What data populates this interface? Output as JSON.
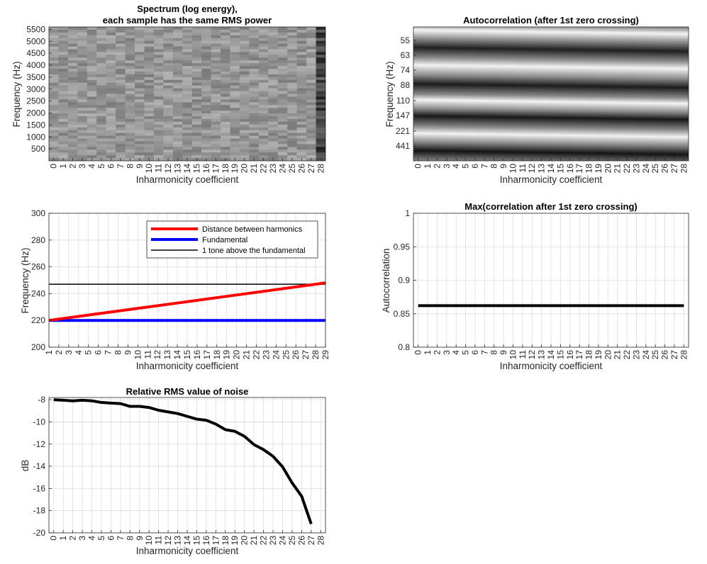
{
  "chart_data": [
    {
      "id": "spectrum",
      "type": "heatmap",
      "title_lines": [
        "Spectrum (log energy),",
        "each sample has the same RMS power"
      ],
      "xlabel": "Inharmonicity coefficient",
      "ylabel": "Frequency (Hz)",
      "x_ticks": [
        0,
        1,
        2,
        3,
        4,
        5,
        6,
        7,
        8,
        9,
        10,
        11,
        12,
        13,
        14,
        15,
        16,
        17,
        18,
        19,
        20,
        21,
        22,
        23,
        24,
        25,
        26,
        27,
        28
      ],
      "y_ticks": [
        500,
        1000,
        1500,
        2000,
        2500,
        3000,
        3500,
        4000,
        4500,
        5000,
        5500
      ],
      "ylim": [
        0,
        5600
      ],
      "colormap": "gray",
      "note_columns": "uniform noise texture; last column (28) darker"
    },
    {
      "id": "autocorr",
      "type": "heatmap",
      "title": "Autocorrelation (after 1st zero crossing)",
      "xlabel": "Inharmonicity coefficient",
      "ylabel": "Frequency (Hz)",
      "x_ticks": [
        0,
        1,
        2,
        3,
        4,
        5,
        6,
        7,
        8,
        9,
        10,
        11,
        12,
        13,
        14,
        15,
        16,
        17,
        18,
        19,
        20,
        21,
        22,
        23,
        24,
        25,
        26,
        27,
        28
      ],
      "y_tick_labels": [
        "55",
        "63",
        "74",
        "88",
        "110",
        "147",
        "221",
        "441"
      ],
      "colormap": "gray",
      "bands": "alternating dark/light horizontal bands, slightly sloping"
    },
    {
      "id": "frequency",
      "type": "line",
      "xlabel": "Inharmonicity coefficient",
      "ylabel": "Frequency (Hz)",
      "xlim": [
        1,
        29
      ],
      "ylim": [
        200,
        300
      ],
      "y_ticks": [
        200,
        220,
        240,
        260,
        280,
        300
      ],
      "x_ticks": [
        1,
        2,
        3,
        4,
        5,
        6,
        7,
        8,
        9,
        10,
        11,
        12,
        13,
        14,
        15,
        16,
        17,
        18,
        19,
        20,
        21,
        22,
        23,
        24,
        25,
        26,
        27,
        28,
        29
      ],
      "grid": true,
      "legend": "top-right",
      "series": [
        {
          "name": "Distance between harmonics",
          "color": "#ff0000",
          "x": [
            1,
            29
          ],
          "y": [
            220,
            248
          ]
        },
        {
          "name": "Fundamental",
          "color": "#0000ff",
          "x": [
            1,
            29
          ],
          "y": [
            220,
            220
          ]
        },
        {
          "name": "1 tone above the fundamental",
          "color": "#000000",
          "x": [
            1,
            29
          ],
          "y": [
            247,
            247
          ]
        }
      ]
    },
    {
      "id": "maxcorr",
      "type": "line",
      "title": "Max(correlation after 1st zero crossing)",
      "xlabel": "Inharmonicity coefficient",
      "ylabel": "Autocorrelation",
      "xlim": [
        -0.5,
        28.5
      ],
      "ylim": [
        0.8,
        1
      ],
      "y_ticks": [
        0.8,
        0.85,
        0.9,
        0.95,
        1
      ],
      "y_tick_labels": [
        "0.8",
        "0.85",
        "0.9",
        "0.95",
        "1"
      ],
      "x_ticks": [
        0,
        1,
        2,
        3,
        4,
        5,
        6,
        7,
        8,
        9,
        10,
        11,
        12,
        13,
        14,
        15,
        16,
        17,
        18,
        19,
        20,
        21,
        22,
        23,
        24,
        25,
        26,
        27,
        28
      ],
      "grid": true,
      "series": [
        {
          "color": "#000000",
          "x": [
            0,
            28
          ],
          "y": [
            0.862,
            0.862
          ]
        }
      ]
    },
    {
      "id": "noise",
      "type": "line",
      "title": "Relative RMS value of noise",
      "xlabel": "Inharmonicity coefficient",
      "ylabel": "dB",
      "xlim": [
        -0.5,
        28.5
      ],
      "ylim": [
        -20,
        -7.8
      ],
      "y_ticks": [
        -20,
        -18,
        -16,
        -14,
        -12,
        -10,
        -8
      ],
      "x_ticks": [
        0,
        1,
        2,
        3,
        4,
        5,
        6,
        7,
        8,
        9,
        10,
        11,
        12,
        13,
        14,
        15,
        16,
        17,
        18,
        19,
        20,
        21,
        22,
        23,
        24,
        25,
        26,
        27,
        28
      ],
      "grid": true,
      "series": [
        {
          "color": "#000000",
          "x": [
            0,
            1,
            2,
            3,
            4,
            5,
            6,
            7,
            8,
            9,
            10,
            11,
            12,
            13,
            14,
            15,
            16,
            17,
            18,
            19,
            20,
            21,
            22,
            23,
            24,
            25,
            26,
            27
          ],
          "y": [
            -8.0,
            -8.05,
            -8.1,
            -8.05,
            -8.1,
            -8.25,
            -8.3,
            -8.35,
            -8.6,
            -8.6,
            -8.7,
            -8.95,
            -9.1,
            -9.25,
            -9.5,
            -9.75,
            -9.85,
            -10.2,
            -10.7,
            -10.85,
            -11.3,
            -12.05,
            -12.5,
            -13.1,
            -14.05,
            -15.5,
            -16.7,
            -19.2
          ]
        }
      ]
    }
  ]
}
